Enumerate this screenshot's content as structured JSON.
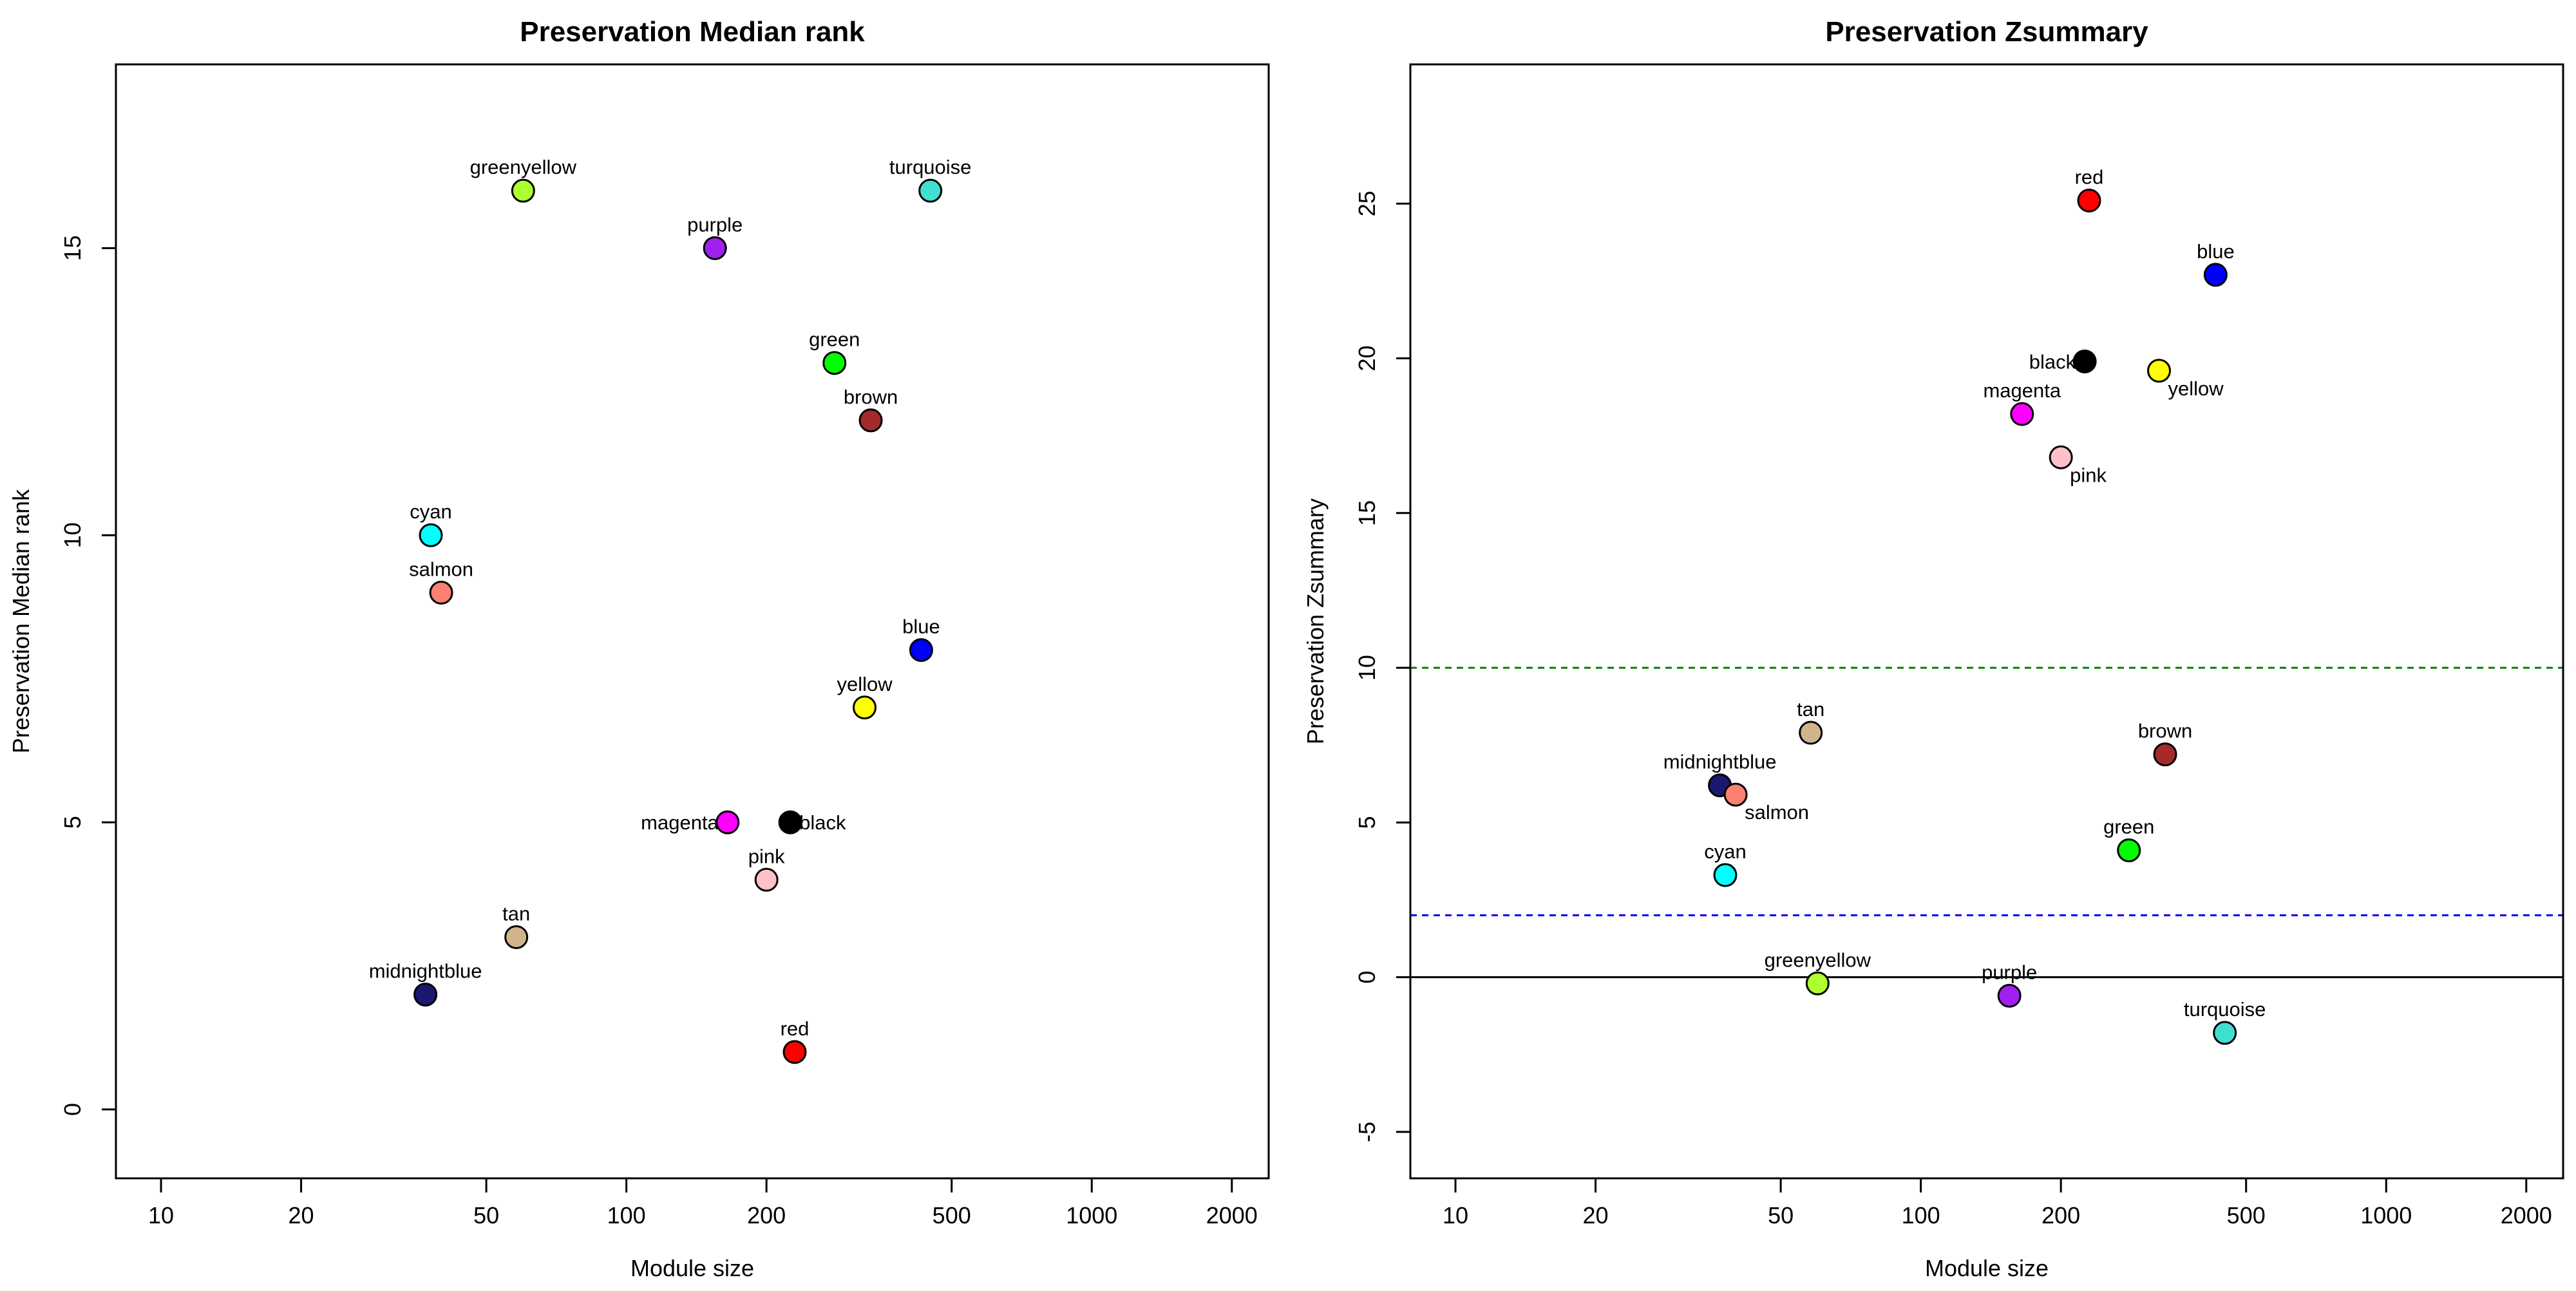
{
  "chart_data": [
    {
      "type": "scatter",
      "title": "Preservation Median rank",
      "xlabel": "Module size",
      "ylabel": "Preservation Median rank",
      "x_scale": "log",
      "xlim": [
        8,
        2400
      ],
      "ylim": [
        -1.2,
        18.2
      ],
      "x_ticks": [
        10,
        20,
        50,
        100,
        200,
        500,
        1000,
        2000
      ],
      "y_ticks": [
        0,
        5,
        10,
        15
      ],
      "reference_lines": [],
      "points": [
        {
          "label": "greenyellow",
          "x": 60,
          "y": 16,
          "color": "#ADFF2F",
          "label_pos": "above"
        },
        {
          "label": "turquoise",
          "x": 450,
          "y": 16,
          "color": "#40E0D0",
          "label_pos": "above"
        },
        {
          "label": "purple",
          "x": 155,
          "y": 15,
          "color": "#A020F0",
          "label_pos": "above"
        },
        {
          "label": "green",
          "x": 280,
          "y": 13,
          "color": "#00FF00",
          "label_pos": "above"
        },
        {
          "label": "brown",
          "x": 335,
          "y": 12,
          "color": "#A52A2A",
          "label_pos": "above"
        },
        {
          "label": "cyan",
          "x": 38,
          "y": 10,
          "color": "#00FFFF",
          "label_pos": "above"
        },
        {
          "label": "salmon",
          "x": 40,
          "y": 9,
          "color": "#FA8072",
          "label_pos": "above"
        },
        {
          "label": "blue",
          "x": 430,
          "y": 8,
          "color": "#0000FF",
          "label_pos": "above"
        },
        {
          "label": "yellow",
          "x": 325,
          "y": 7,
          "color": "#FFFF00",
          "label_pos": "above"
        },
        {
          "label": "magenta",
          "x": 165,
          "y": 5,
          "color": "#FF00FF",
          "label_pos": "left"
        },
        {
          "label": "black",
          "x": 225,
          "y": 5,
          "color": "#000000",
          "label_pos": "right"
        },
        {
          "label": "pink",
          "x": 200,
          "y": 4,
          "color": "#FFC0CB",
          "label_pos": "above"
        },
        {
          "label": "tan",
          "x": 58,
          "y": 3,
          "color": "#D2B48C",
          "label_pos": "above"
        },
        {
          "label": "midnightblue",
          "x": 37,
          "y": 2,
          "color": "#191970",
          "label_pos": "above"
        },
        {
          "label": "red",
          "x": 230,
          "y": 1,
          "color": "#FF0000",
          "label_pos": "above"
        }
      ]
    },
    {
      "type": "scatter",
      "title": "Preservation Zsummary",
      "xlabel": "Module size",
      "ylabel": "Preservation Zsummary",
      "x_scale": "log",
      "xlim": [
        8,
        2400
      ],
      "ylim": [
        -6.5,
        29.5
      ],
      "x_ticks": [
        10,
        20,
        50,
        100,
        200,
        500,
        1000,
        2000
      ],
      "y_ticks": [
        -5,
        0,
        5,
        10,
        15,
        20,
        25
      ],
      "reference_lines": [
        {
          "y": 0,
          "color": "#000000",
          "style": "solid"
        },
        {
          "y": 2,
          "color": "#0000FF",
          "style": "dashed"
        },
        {
          "y": 10,
          "color": "#008000",
          "style": "dashed"
        }
      ],
      "points": [
        {
          "label": "red",
          "x": 230,
          "y": 25.1,
          "color": "#FF0000",
          "label_pos": "above"
        },
        {
          "label": "blue",
          "x": 430,
          "y": 22.7,
          "color": "#0000FF",
          "label_pos": "above"
        },
        {
          "label": "black",
          "x": 225,
          "y": 19.9,
          "color": "#000000",
          "label_pos": "left"
        },
        {
          "label": "yellow",
          "x": 325,
          "y": 19.6,
          "color": "#FFFF00",
          "label_pos": "below-right"
        },
        {
          "label": "magenta",
          "x": 165,
          "y": 18.2,
          "color": "#FF00FF",
          "label_pos": "above"
        },
        {
          "label": "pink",
          "x": 200,
          "y": 16.8,
          "color": "#FFC0CB",
          "label_pos": "below-right"
        },
        {
          "label": "tan",
          "x": 58,
          "y": 7.9,
          "color": "#D2B48C",
          "label_pos": "above"
        },
        {
          "label": "brown",
          "x": 335,
          "y": 7.2,
          "color": "#A52A2A",
          "label_pos": "above"
        },
        {
          "label": "midnightblue",
          "x": 37,
          "y": 6.2,
          "color": "#191970",
          "label_pos": "above"
        },
        {
          "label": "salmon",
          "x": 40,
          "y": 5.9,
          "color": "#FA8072",
          "label_pos": "below-right"
        },
        {
          "label": "green",
          "x": 280,
          "y": 4.1,
          "color": "#00FF00",
          "label_pos": "above"
        },
        {
          "label": "cyan",
          "x": 38,
          "y": 3.3,
          "color": "#00FFFF",
          "label_pos": "above"
        },
        {
          "label": "greenyellow",
          "x": 60,
          "y": -0.2,
          "color": "#ADFF2F",
          "label_pos": "above"
        },
        {
          "label": "purple",
          "x": 155,
          "y": -0.6,
          "color": "#A020F0",
          "label_pos": "above"
        },
        {
          "label": "turquoise",
          "x": 450,
          "y": -1.8,
          "color": "#40E0D0",
          "label_pos": "above"
        }
      ]
    }
  ]
}
